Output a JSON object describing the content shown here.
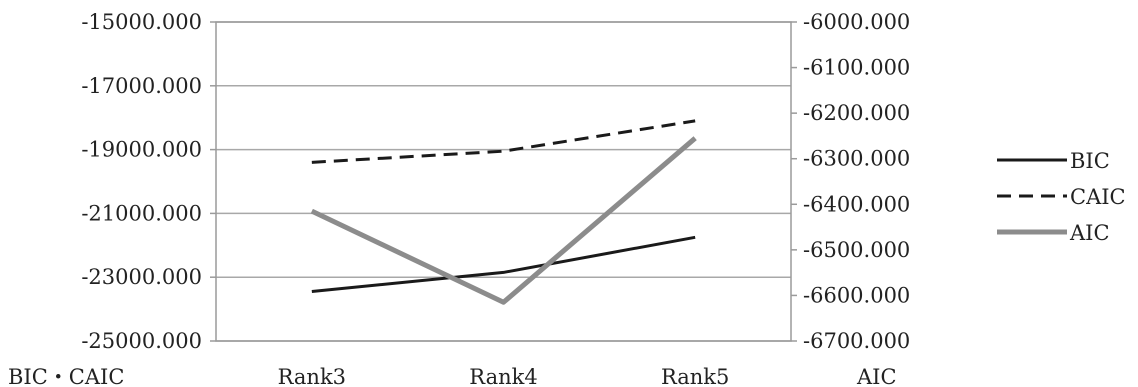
{
  "chart_data": {
    "type": "line",
    "categories": [
      "Rank3",
      "Rank4",
      "Rank5"
    ],
    "left_axis": {
      "label": "BIC・CAIC",
      "ylim": [
        -25000,
        -15000
      ],
      "ticks": [
        -15000,
        -17000,
        -19000,
        -21000,
        -23000,
        -25000
      ],
      "tick_labels": [
        "-15000.000",
        "-17000.000",
        "-19000.000",
        "-21000.000",
        "-23000.000",
        "-25000.000"
      ]
    },
    "right_axis": {
      "label": "AIC",
      "ylim": [
        -6700,
        -6000
      ],
      "ticks": [
        -6000,
        -6100,
        -6200,
        -6300,
        -6400,
        -6500,
        -6600,
        -6700
      ],
      "tick_labels": [
        "-6000.000",
        "-6100.000",
        "-6200.000",
        "-6300.000",
        "-6400.000",
        "-6500.000",
        "-6600.000",
        "-6700.000"
      ]
    },
    "series": [
      {
        "name": "BIC",
        "axis": "left",
        "values": [
          -23450,
          -22850,
          -21750
        ],
        "color": "#1a1a1a",
        "style": "solid"
      },
      {
        "name": "CAIC",
        "axis": "left",
        "values": [
          -19400,
          -19050,
          -18100
        ],
        "color": "#1a1a1a",
        "style": "dashed"
      },
      {
        "name": "AIC",
        "axis": "right",
        "values": [
          -6415,
          -6615,
          -6255
        ],
        "color": "#8c8c8c",
        "style": "solid-thick"
      }
    ],
    "grid": true,
    "legend_position": "right"
  }
}
